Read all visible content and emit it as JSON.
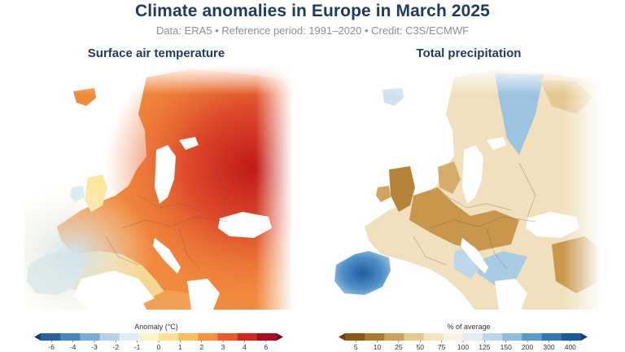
{
  "title": "Climate anomalies in Europe in March 2025",
  "subtitle": "Data: ERA5 • Reference period: 1991–2020 • Credit: C3S/ECMWF",
  "panels": [
    {
      "title": "Surface air temperature",
      "colorbar": {
        "label": "Anomaly (°C)",
        "ticks": [
          "-6",
          "-4",
          "-3",
          "-2",
          "-1",
          "0",
          "1",
          "2",
          "3",
          "4",
          "6"
        ],
        "colors": [
          "#1b3a70",
          "#2a5ea1",
          "#4b84c2",
          "#7cacd8",
          "#b4d2ea",
          "#dfeef6",
          "#fdf4c5",
          "#fde18e",
          "#fcbd5c",
          "#f7913e",
          "#ea5d2b",
          "#d1281f",
          "#a60d1e",
          "#7d0a1a"
        ]
      }
    },
    {
      "title": "Total precipitation",
      "colorbar": {
        "label": "% of average",
        "ticks": [
          "5",
          "10",
          "25",
          "50",
          "75",
          "100",
          "125",
          "150",
          "200",
          "300",
          "400"
        ],
        "colors": [
          "#6b3e06",
          "#8c5812",
          "#b07a2d",
          "#cea15a",
          "#e6c98e",
          "#f3e4c2",
          "#f8f2e0",
          "#e2eef5",
          "#bcd7ea",
          "#8dbcdd",
          "#5a9bcc",
          "#3079b8",
          "#1a5a9c",
          "#0e3f78"
        ]
      }
    }
  ]
}
